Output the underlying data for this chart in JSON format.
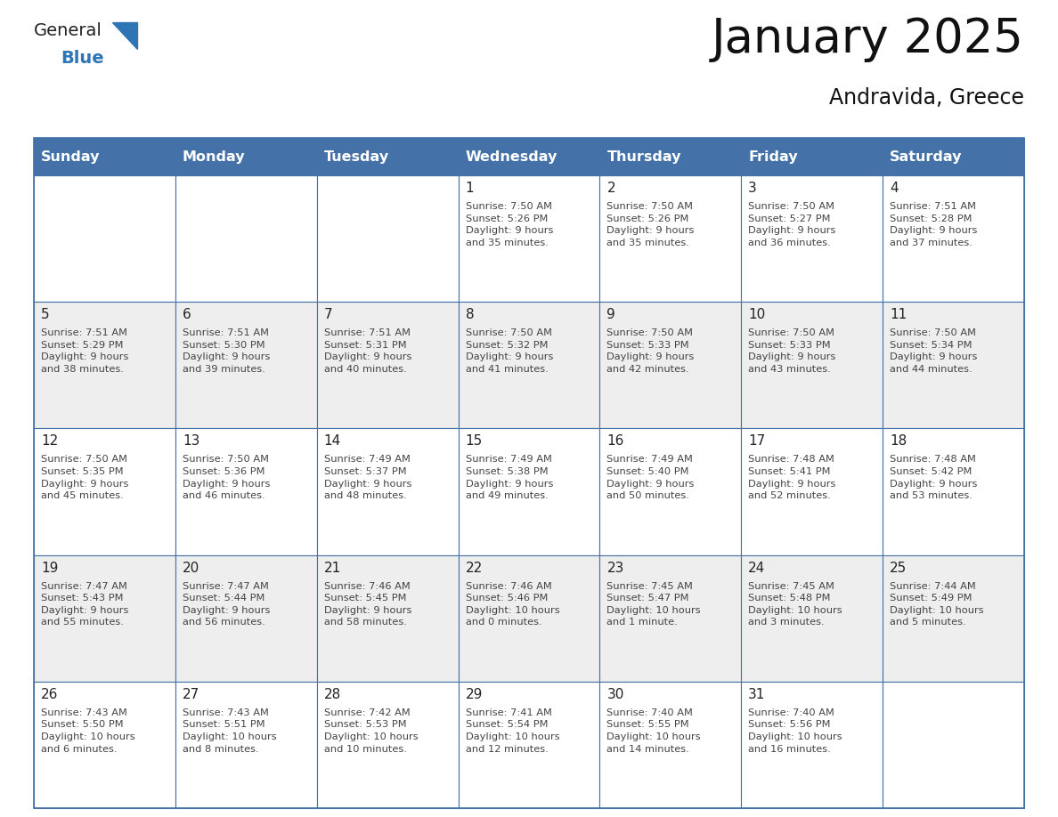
{
  "title": "January 2025",
  "subtitle": "Andravida, Greece",
  "days_of_week": [
    "Sunday",
    "Monday",
    "Tuesday",
    "Wednesday",
    "Thursday",
    "Friday",
    "Saturday"
  ],
  "header_bg": "#4472a8",
  "header_text": "#ffffff",
  "row_bg_odd": "#ffffff",
  "row_bg_even": "#eeeeee",
  "border_color": "#4472a8",
  "day_number_color": "#222222",
  "info_text_color": "#444444",
  "title_color": "#111111",
  "subtitle_color": "#111111",
  "logo_general_color": "#222222",
  "logo_blue_color": "#2e75b6",
  "weeks": [
    [
      {
        "day": "",
        "info": ""
      },
      {
        "day": "",
        "info": ""
      },
      {
        "day": "",
        "info": ""
      },
      {
        "day": "1",
        "info": "Sunrise: 7:50 AM\nSunset: 5:26 PM\nDaylight: 9 hours\nand 35 minutes."
      },
      {
        "day": "2",
        "info": "Sunrise: 7:50 AM\nSunset: 5:26 PM\nDaylight: 9 hours\nand 35 minutes."
      },
      {
        "day": "3",
        "info": "Sunrise: 7:50 AM\nSunset: 5:27 PM\nDaylight: 9 hours\nand 36 minutes."
      },
      {
        "day": "4",
        "info": "Sunrise: 7:51 AM\nSunset: 5:28 PM\nDaylight: 9 hours\nand 37 minutes."
      }
    ],
    [
      {
        "day": "5",
        "info": "Sunrise: 7:51 AM\nSunset: 5:29 PM\nDaylight: 9 hours\nand 38 minutes."
      },
      {
        "day": "6",
        "info": "Sunrise: 7:51 AM\nSunset: 5:30 PM\nDaylight: 9 hours\nand 39 minutes."
      },
      {
        "day": "7",
        "info": "Sunrise: 7:51 AM\nSunset: 5:31 PM\nDaylight: 9 hours\nand 40 minutes."
      },
      {
        "day": "8",
        "info": "Sunrise: 7:50 AM\nSunset: 5:32 PM\nDaylight: 9 hours\nand 41 minutes."
      },
      {
        "day": "9",
        "info": "Sunrise: 7:50 AM\nSunset: 5:33 PM\nDaylight: 9 hours\nand 42 minutes."
      },
      {
        "day": "10",
        "info": "Sunrise: 7:50 AM\nSunset: 5:33 PM\nDaylight: 9 hours\nand 43 minutes."
      },
      {
        "day": "11",
        "info": "Sunrise: 7:50 AM\nSunset: 5:34 PM\nDaylight: 9 hours\nand 44 minutes."
      }
    ],
    [
      {
        "day": "12",
        "info": "Sunrise: 7:50 AM\nSunset: 5:35 PM\nDaylight: 9 hours\nand 45 minutes."
      },
      {
        "day": "13",
        "info": "Sunrise: 7:50 AM\nSunset: 5:36 PM\nDaylight: 9 hours\nand 46 minutes."
      },
      {
        "day": "14",
        "info": "Sunrise: 7:49 AM\nSunset: 5:37 PM\nDaylight: 9 hours\nand 48 minutes."
      },
      {
        "day": "15",
        "info": "Sunrise: 7:49 AM\nSunset: 5:38 PM\nDaylight: 9 hours\nand 49 minutes."
      },
      {
        "day": "16",
        "info": "Sunrise: 7:49 AM\nSunset: 5:40 PM\nDaylight: 9 hours\nand 50 minutes."
      },
      {
        "day": "17",
        "info": "Sunrise: 7:48 AM\nSunset: 5:41 PM\nDaylight: 9 hours\nand 52 minutes."
      },
      {
        "day": "18",
        "info": "Sunrise: 7:48 AM\nSunset: 5:42 PM\nDaylight: 9 hours\nand 53 minutes."
      }
    ],
    [
      {
        "day": "19",
        "info": "Sunrise: 7:47 AM\nSunset: 5:43 PM\nDaylight: 9 hours\nand 55 minutes."
      },
      {
        "day": "20",
        "info": "Sunrise: 7:47 AM\nSunset: 5:44 PM\nDaylight: 9 hours\nand 56 minutes."
      },
      {
        "day": "21",
        "info": "Sunrise: 7:46 AM\nSunset: 5:45 PM\nDaylight: 9 hours\nand 58 minutes."
      },
      {
        "day": "22",
        "info": "Sunrise: 7:46 AM\nSunset: 5:46 PM\nDaylight: 10 hours\nand 0 minutes."
      },
      {
        "day": "23",
        "info": "Sunrise: 7:45 AM\nSunset: 5:47 PM\nDaylight: 10 hours\nand 1 minute."
      },
      {
        "day": "24",
        "info": "Sunrise: 7:45 AM\nSunset: 5:48 PM\nDaylight: 10 hours\nand 3 minutes."
      },
      {
        "day": "25",
        "info": "Sunrise: 7:44 AM\nSunset: 5:49 PM\nDaylight: 10 hours\nand 5 minutes."
      }
    ],
    [
      {
        "day": "26",
        "info": "Sunrise: 7:43 AM\nSunset: 5:50 PM\nDaylight: 10 hours\nand 6 minutes."
      },
      {
        "day": "27",
        "info": "Sunrise: 7:43 AM\nSunset: 5:51 PM\nDaylight: 10 hours\nand 8 minutes."
      },
      {
        "day": "28",
        "info": "Sunrise: 7:42 AM\nSunset: 5:53 PM\nDaylight: 10 hours\nand 10 minutes."
      },
      {
        "day": "29",
        "info": "Sunrise: 7:41 AM\nSunset: 5:54 PM\nDaylight: 10 hours\nand 12 minutes."
      },
      {
        "day": "30",
        "info": "Sunrise: 7:40 AM\nSunset: 5:55 PM\nDaylight: 10 hours\nand 14 minutes."
      },
      {
        "day": "31",
        "info": "Sunrise: 7:40 AM\nSunset: 5:56 PM\nDaylight: 10 hours\nand 16 minutes."
      },
      {
        "day": "",
        "info": ""
      }
    ]
  ]
}
